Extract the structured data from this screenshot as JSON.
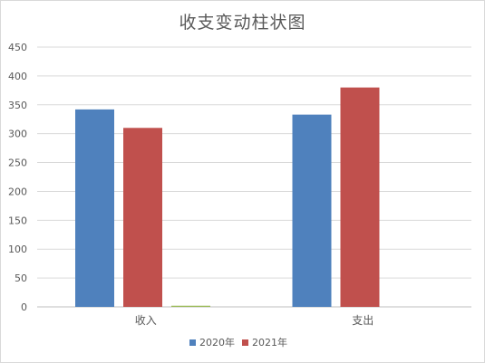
{
  "chart_data": {
    "type": "bar",
    "title": "收支变动柱状图",
    "categories": [
      "收入",
      "支出"
    ],
    "series": [
      {
        "name": "2020年",
        "color": "#4f81bd",
        "values": [
          342,
          333
        ]
      },
      {
        "name": "2021年",
        "color": "#c0504d",
        "values": [
          310,
          380
        ]
      },
      {
        "name": "",
        "color": "#9bbb59",
        "values": [
          2,
          0
        ]
      }
    ],
    "xlabel": "",
    "ylabel": "",
    "ylim": [
      0,
      450
    ],
    "yticks": [
      0,
      50,
      100,
      150,
      200,
      250,
      300,
      350,
      400,
      450
    ],
    "grid": true,
    "legend": "bottom"
  }
}
